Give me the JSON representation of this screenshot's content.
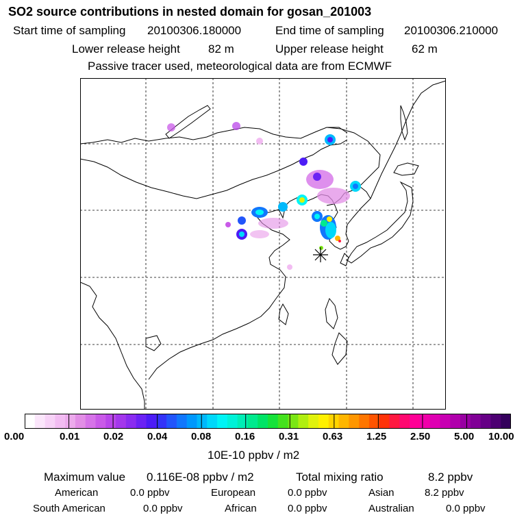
{
  "title": "SO2 source contributions in nested domain for gosan_201003",
  "sampling": {
    "start_label": "Start time of sampling",
    "start_value": "20100306.180000",
    "end_label": "End time of sampling",
    "end_value": "20100306.210000"
  },
  "release": {
    "lower_label": "Lower release height",
    "lower_value": "82 m",
    "upper_label": "Upper release height",
    "upper_value": "62 m"
  },
  "note": "Passive tracer used, meteorological data are from ECMWF",
  "colorbar": {
    "tick_labels": [
      "0.00",
      "0.01",
      "0.02",
      "0.04",
      "0.08",
      "0.16",
      "0.31",
      "0.63",
      "1.25",
      "2.50",
      "5.00",
      "10.00"
    ],
    "unit": "10E-10 ppbv / m2",
    "colors": [
      "#ffffff",
      "#fbe6fb",
      "#f7d2f7",
      "#f2bcf2",
      "#ecaaec",
      "#e28ee6",
      "#d673e8",
      "#c95ae8",
      "#b946ea",
      "#a337ec",
      "#8a2cf0",
      "#6b22f4",
      "#4c1cf6",
      "#3333f8",
      "#2255fb",
      "#1177fc",
      "#0098fc",
      "#00b8fb",
      "#00d8fa",
      "#00f4f6",
      "#00f2d8",
      "#00eeb6",
      "#00ea8e",
      "#00e466",
      "#16e23a",
      "#44e21e",
      "#7ae614",
      "#b0ee10",
      "#e0f20c",
      "#fff000",
      "#ffd400",
      "#ffb600",
      "#ff9600",
      "#ff7600",
      "#ff5400",
      "#ff3208",
      "#ff1840",
      "#ff0870",
      "#ff0096",
      "#f000aa",
      "#de00b2",
      "#c800b2",
      "#b000ac",
      "#9800a2",
      "#800096",
      "#660086",
      "#4c0072",
      "#34005c"
    ]
  },
  "summary": {
    "max_label": "Maximum value",
    "max_value": "0.116E-08 ppbv / m2",
    "total_label": "Total mixing ratio",
    "total_value": "8.2 ppbv"
  },
  "regions": {
    "american_label": "American",
    "american_value": "0.0 ppbv",
    "european_label": "European",
    "european_value": "0.0 ppbv",
    "asian_label": "Asian",
    "asian_value": "8.2 ppbv",
    "south_american_label": "South American",
    "south_american_value": "0.0 ppbv",
    "african_label": "African",
    "african_value": "0.0 ppbv",
    "australian_label": "Australian",
    "australian_value": "0.0 ppbv"
  },
  "map": {
    "receptor_icon": "asterisk-receptor-icon",
    "coast_color": "#000000",
    "grid_color": "#000000"
  }
}
